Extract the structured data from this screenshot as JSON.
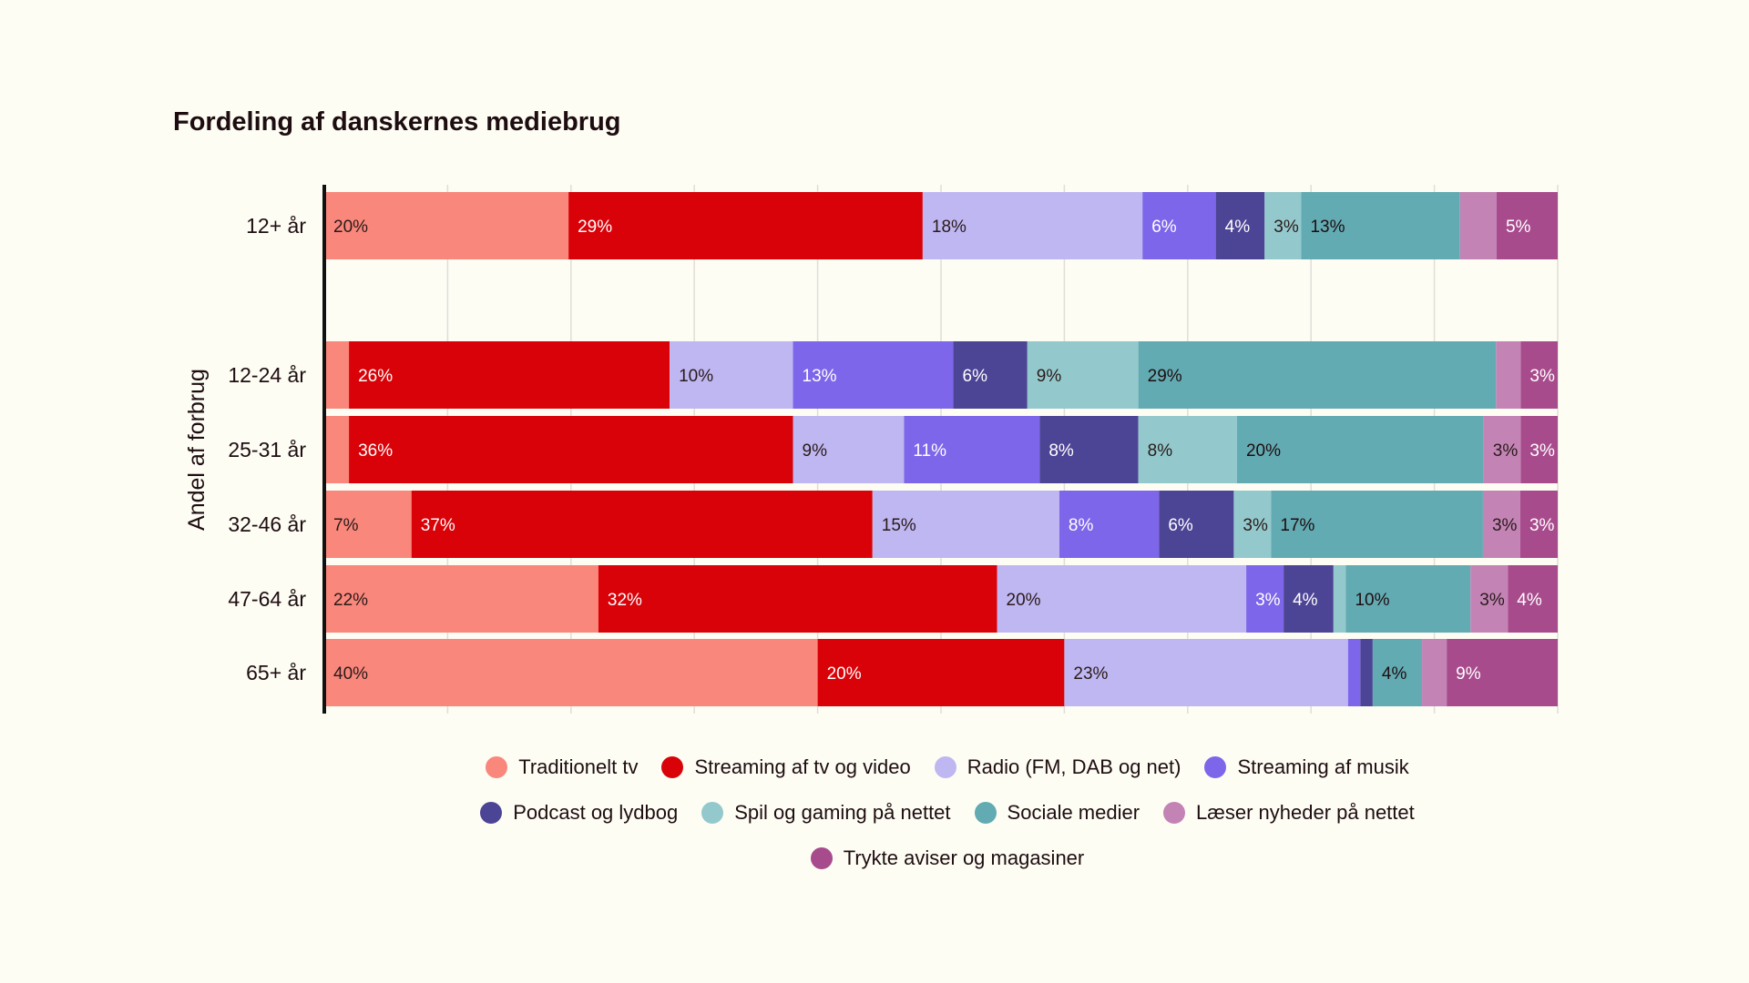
{
  "chart_data": {
    "type": "bar",
    "orientation": "horizontal",
    "stacked": true,
    "title": "Fordeling af danskernes mediebrug",
    "ylabel": "Andel af forbrug",
    "xlabel": "",
    "xlim": [
      0,
      100
    ],
    "grid": true,
    "legend_position": "bottom",
    "categories": [
      "12+ år",
      "12-24 år",
      "25-31 år",
      "32-46 år",
      "47-64 år",
      "65+ år"
    ],
    "series": [
      {
        "name": "Traditionelt tv",
        "color": "#f9877b",
        "values": [
          20,
          2,
          2,
          7,
          22,
          40
        ],
        "labels": [
          "20%",
          "",
          "",
          "7%",
          "22%",
          "40%"
        ]
      },
      {
        "name": "Streaming af tv og video",
        "color": "#d80208",
        "values": [
          29,
          26,
          36,
          37,
          32,
          20
        ],
        "labels": [
          "29%",
          "26%",
          "36%",
          "37%",
          "32%",
          "20%"
        ]
      },
      {
        "name": "Radio (FM, DAB og net)",
        "color": "#bfb7f1",
        "values": [
          18,
          10,
          9,
          15,
          20,
          23
        ],
        "labels": [
          "18%",
          "10%",
          "9%",
          "15%",
          "20%",
          "23%"
        ]
      },
      {
        "name": "Streaming af musik",
        "color": "#7e66ea",
        "values": [
          6,
          13,
          11,
          8,
          3,
          1
        ],
        "labels": [
          "6%",
          "13%",
          "11%",
          "8%",
          "3%",
          ""
        ]
      },
      {
        "name": "Podcast og lydbog",
        "color": "#4c4494",
        "values": [
          4,
          6,
          8,
          6,
          4,
          1
        ],
        "labels": [
          "4%",
          "6%",
          "8%",
          "6%",
          "4%",
          ""
        ]
      },
      {
        "name": "Spil og gaming på nettet",
        "color": "#93c9cc",
        "values": [
          3,
          9,
          8,
          3,
          1,
          0
        ],
        "labels": [
          "3%",
          "9%",
          "8%",
          "3%",
          "",
          ""
        ]
      },
      {
        "name": "Sociale medier",
        "color": "#62abb2",
        "values": [
          13,
          29,
          20,
          17,
          10,
          4
        ],
        "labels": [
          "13%",
          "29%",
          "20%",
          "17%",
          "10%",
          "4%"
        ]
      },
      {
        "name": "Læser nyheder på nettet",
        "color": "#c384b5",
        "values": [
          3,
          2,
          3,
          3,
          3,
          2
        ],
        "labels": [
          "",
          "",
          "3%",
          "3%",
          "3%",
          ""
        ]
      },
      {
        "name": "Trykte aviser og magasiner",
        "color": "#a84b8d",
        "values": [
          5,
          3,
          3,
          3,
          4,
          9
        ],
        "labels": [
          "5%",
          "3%",
          "3%",
          "3%",
          "4%",
          "9%"
        ]
      }
    ]
  }
}
